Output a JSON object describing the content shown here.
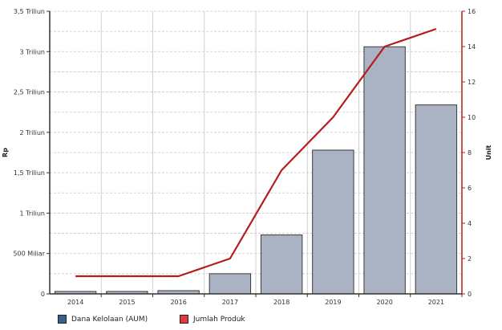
{
  "chart_data": {
    "type": "bar",
    "categories": [
      "2014",
      "2015",
      "2016",
      "2017",
      "2018",
      "2019",
      "2020",
      "2021"
    ],
    "series": [
      {
        "name": "Dana Kelolaan (AUM)",
        "type": "bar",
        "axis": "left",
        "color": "#a9b3c3",
        "values": [
          0.03,
          0.03,
          0.04,
          0.25,
          0.73,
          1.78,
          3.06,
          2.34
        ]
      },
      {
        "name": "Jumlah Produk",
        "type": "line",
        "axis": "right",
        "color": "#b51c1c",
        "values": [
          1,
          1,
          1,
          2,
          7,
          10,
          14,
          15
        ]
      }
    ],
    "ylabel": "Rp",
    "y2label": "Unit",
    "ylim": [
      0,
      3.5
    ],
    "y2lim": [
      0,
      16
    ],
    "yticks": [
      "0",
      "500 Miliar",
      "1 Triliun",
      "1,5 Triliun",
      "2 Triliun",
      "2,5 Triliun",
      "3 Triliun",
      "3,5 Triliun"
    ],
    "y2ticks": [
      "0",
      "2",
      "4",
      "6",
      "8",
      "10",
      "12",
      "14",
      "16"
    ],
    "grid": true,
    "legend_position": "bottom-left"
  },
  "legend": {
    "aum_label": "Dana Kelolaan (AUM)",
    "produk_label": "Jumlah Produk",
    "aum_color": "#3a5f8a",
    "produk_color": "#e03a3a"
  }
}
